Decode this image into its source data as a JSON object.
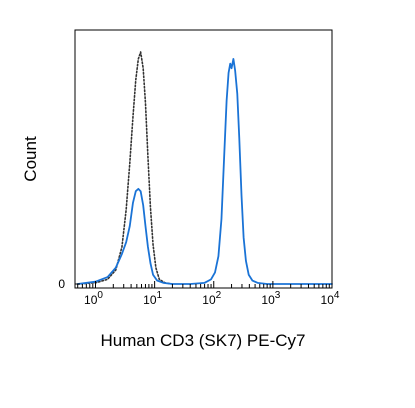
{
  "chart_data": {
    "type": "line",
    "title": "",
    "xlabel": "Human CD3 (SK7) PE-Cy7",
    "ylabel": "Count",
    "x_scale": "log",
    "xlim": [
      0.45,
      10000
    ],
    "ylim": [
      0,
      100
    ],
    "x_ticks": [
      {
        "value": 1,
        "base": "10",
        "exp": "0"
      },
      {
        "value": 10,
        "base": "10",
        "exp": "1"
      },
      {
        "value": 100,
        "base": "10",
        "exp": "2"
      },
      {
        "value": 1000,
        "base": "10",
        "exp": "3"
      },
      {
        "value": 10000,
        "base": "10",
        "exp": "4"
      }
    ],
    "y_ticks": [
      {
        "value": 0,
        "label": "0"
      }
    ],
    "grid": false,
    "legend": "none",
    "series": [
      {
        "style": "dotted",
        "color": "#333333",
        "points": [
          [
            0.5,
            0
          ],
          [
            1.0,
            0.5
          ],
          [
            1.6,
            2
          ],
          [
            2.2,
            6
          ],
          [
            2.8,
            16
          ],
          [
            3.3,
            32
          ],
          [
            3.8,
            52
          ],
          [
            4.3,
            72
          ],
          [
            4.8,
            88
          ],
          [
            5.3,
            97
          ],
          [
            5.8,
            100
          ],
          [
            6.4,
            93
          ],
          [
            7.0,
            78
          ],
          [
            7.7,
            55
          ],
          [
            8.5,
            33
          ],
          [
            9.4,
            17
          ],
          [
            10.5,
            7
          ],
          [
            12,
            2
          ],
          [
            15,
            0.5
          ],
          [
            20,
            0
          ]
        ]
      },
      {
        "style": "solid",
        "color": "#1a73d6",
        "points": [
          [
            0.5,
            0
          ],
          [
            1.0,
            1
          ],
          [
            1.6,
            3
          ],
          [
            2.2,
            7
          ],
          [
            2.8,
            13
          ],
          [
            3.3,
            18
          ],
          [
            3.8,
            25
          ],
          [
            4.3,
            35
          ],
          [
            4.8,
            40
          ],
          [
            5.3,
            41
          ],
          [
            5.8,
            40
          ],
          [
            6.4,
            34
          ],
          [
            7.0,
            25
          ],
          [
            7.7,
            16
          ],
          [
            8.5,
            9
          ],
          [
            9.4,
            4
          ],
          [
            11,
            1.5
          ],
          [
            14,
            0.5
          ],
          [
            20,
            0
          ],
          [
            40,
            0
          ],
          [
            70,
            0.5
          ],
          [
            90,
            2
          ],
          [
            105,
            5
          ],
          [
            120,
            12
          ],
          [
            135,
            28
          ],
          [
            150,
            55
          ],
          [
            165,
            79
          ],
          [
            178,
            91
          ],
          [
            190,
            95
          ],
          [
            200,
            93
          ],
          [
            215,
            97
          ],
          [
            230,
            92
          ],
          [
            250,
            82
          ],
          [
            270,
            63
          ],
          [
            295,
            38
          ],
          [
            320,
            20
          ],
          [
            350,
            10
          ],
          [
            390,
            4
          ],
          [
            450,
            1.5
          ],
          [
            550,
            0.5
          ],
          [
            800,
            0
          ],
          [
            10000,
            0
          ]
        ]
      }
    ]
  }
}
